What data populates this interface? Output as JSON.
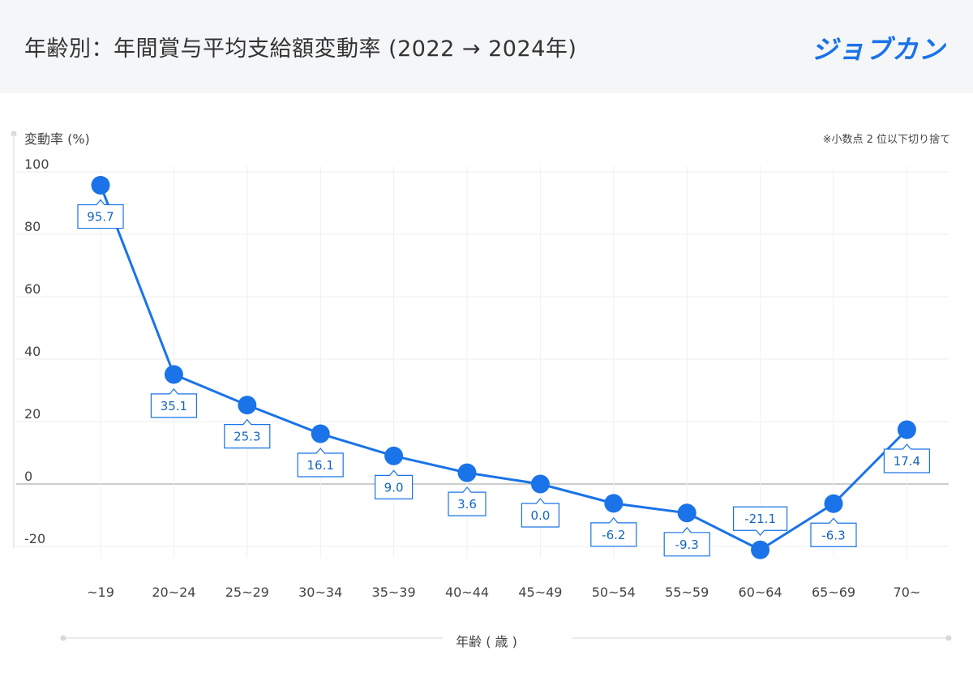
{
  "header": {
    "title": "年齢別：年間賞与平均支給額変動率 (2022 → 2024年)",
    "logo": "ジョブカン"
  },
  "note": "※小数点 2 位以下切り捨て",
  "colors": {
    "line": "#1a73e8",
    "label_text": "#1565c0",
    "header_bg": "#f5f6f8"
  },
  "chart_data": {
    "type": "line",
    "title": "年齢別：年間賞与平均支給額変動率 (2022 → 2024年)",
    "xlabel": "年齢 ( 歳 )",
    "ylabel": "変動率 (%)",
    "ylim": [
      -20,
      100
    ],
    "yticks": [
      100,
      80,
      60,
      40,
      20,
      0,
      -20
    ],
    "grid": true,
    "categories": [
      "~19",
      "20~24",
      "25~29",
      "30~34",
      "35~39",
      "40~44",
      "45~49",
      "50~54",
      "55~59",
      "60~64",
      "65~69",
      "70~"
    ],
    "values": [
      95.7,
      35.1,
      25.3,
      16.1,
      9.0,
      3.6,
      0.0,
      -6.2,
      -9.3,
      -21.1,
      -6.3,
      17.4
    ],
    "value_labels": [
      "95.7",
      "35.1",
      "25.3",
      "16.1",
      "9.0",
      "3.6",
      "0.0",
      "-6.2",
      "-9.3",
      "-21.1",
      "-6.3",
      "17.4"
    ],
    "label_position": [
      "below",
      "below",
      "below",
      "below",
      "below",
      "below",
      "below",
      "below",
      "below",
      "above",
      "below",
      "below"
    ]
  }
}
